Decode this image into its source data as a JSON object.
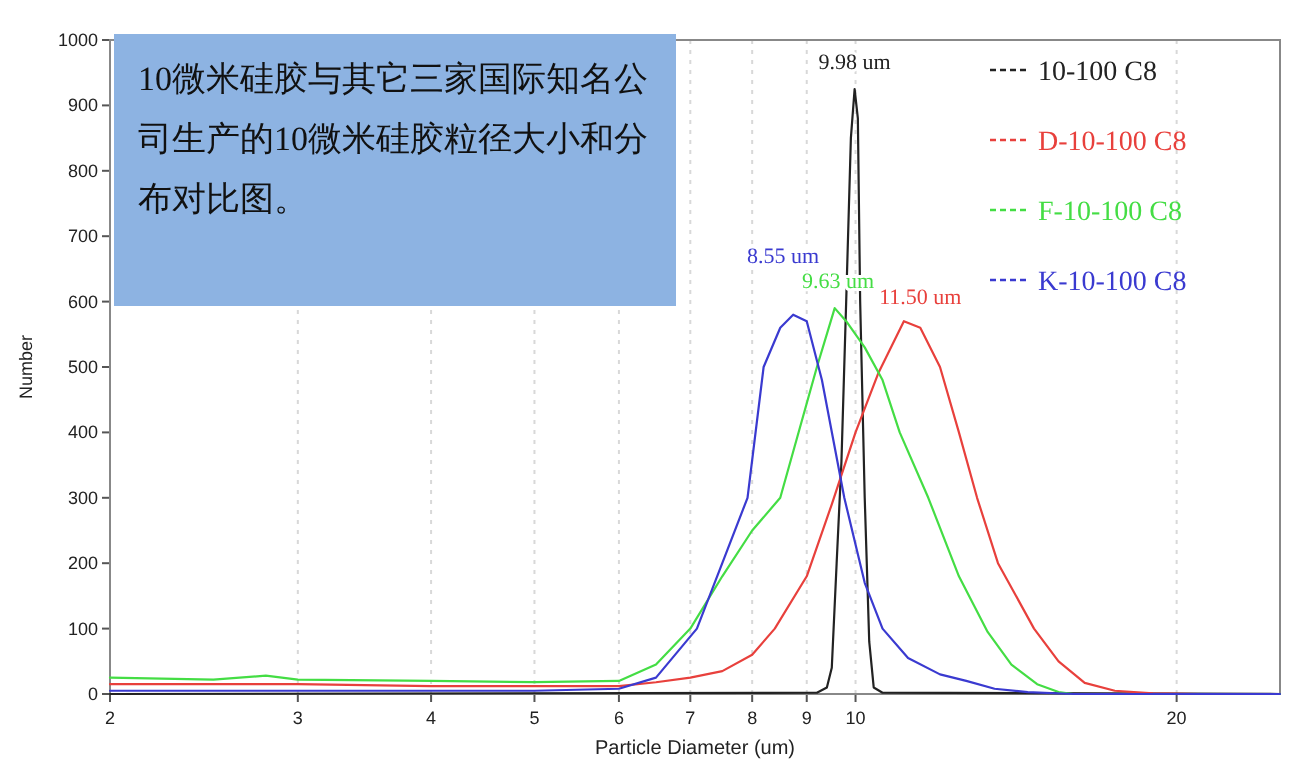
{
  "chart_data": {
    "type": "line",
    "xlabel": "Particle Diameter (um)",
    "ylabel": "Number",
    "log": "x",
    "xlim": [
      2,
      25
    ],
    "xticks": [
      2,
      3,
      4,
      5,
      6,
      7,
      8,
      9,
      10,
      20
    ],
    "ylim": [
      0,
      1000
    ],
    "yticks": [
      0,
      100,
      200,
      300,
      400,
      500,
      600,
      700,
      800,
      900,
      1000
    ],
    "grid": "x",
    "legend": "top right",
    "series": [
      {
        "name": "10-100 C8",
        "color": "#222222",
        "x": [
          2,
          9.2,
          9.4,
          9.5,
          9.6,
          9.7,
          9.8,
          9.9,
          9.98,
          10.05,
          10.1,
          10.2,
          10.3,
          10.4,
          10.6,
          25
        ],
        "values": [
          0,
          2,
          10,
          40,
          200,
          355,
          600,
          850,
          925,
          880,
          600,
          300,
          80,
          10,
          2,
          0
        ]
      },
      {
        "name": "D-10-100 C8",
        "color": "#e8403c",
        "x": [
          2,
          3,
          4,
          5,
          6,
          6.5,
          7,
          7.5,
          8,
          8.4,
          9,
          9.5,
          10,
          10.5,
          11.1,
          11.5,
          12,
          12.5,
          13,
          13.6,
          14.7,
          15.5,
          16.4,
          17.5,
          19,
          21,
          25
        ],
        "values": [
          15,
          15,
          12,
          12,
          12,
          18,
          25,
          35,
          60,
          100,
          180,
          290,
          400,
          490,
          570,
          560,
          500,
          400,
          300,
          200,
          100,
          50,
          17,
          5,
          1,
          0,
          0
        ]
      },
      {
        "name": "F-10-100 C8",
        "color": "#44dd44",
        "x": [
          2,
          2.5,
          2.8,
          3,
          4,
          5,
          6,
          6.5,
          7,
          7.5,
          8,
          8.5,
          9.2,
          9.56,
          9.8,
          10.2,
          10.6,
          11,
          11.7,
          12.5,
          13.3,
          14,
          14.8,
          15.5,
          16,
          25
        ],
        "values": [
          25,
          22,
          28,
          22,
          20,
          18,
          20,
          45,
          100,
          180,
          250,
          300,
          500,
          590,
          570,
          530,
          480,
          400,
          300,
          180,
          95,
          45,
          15,
          3,
          0,
          0
        ]
      },
      {
        "name": "K-10-100 C8",
        "color": "#3a3ad0",
        "x": [
          2,
          5,
          6,
          6.5,
          7.1,
          7.5,
          7.92,
          8.2,
          8.5,
          8.74,
          9,
          9.3,
          9.76,
          10.2,
          10.6,
          11.2,
          12,
          12.7,
          13.5,
          14.5,
          16,
          25
        ],
        "values": [
          5,
          5,
          8,
          25,
          100,
          200,
          300,
          500,
          560,
          580,
          570,
          480,
          300,
          170,
          100,
          55,
          30,
          20,
          8,
          3,
          0,
          0
        ]
      }
    ],
    "annotations": [
      "10微米硅胶与其它三家国际知名公司生产的10微米硅胶粒径大小和分布对比图。",
      {
        "text": "9.98 um",
        "x": 9.98,
        "y": 925
      },
      {
        "text": "9.63 um",
        "x": 9.63,
        "y": 590
      },
      {
        "text": "8.55 um",
        "x": 8.55,
        "y": 580
      },
      {
        "text": "11.50 um",
        "x": 11.5,
        "y": 565
      }
    ]
  }
}
